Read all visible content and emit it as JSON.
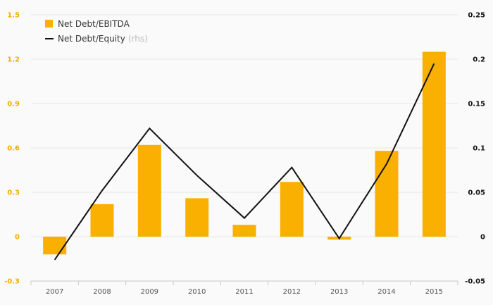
{
  "chart_data": {
    "type": "bar",
    "categories": [
      "2007",
      "2008",
      "2009",
      "2010",
      "2011",
      "2012",
      "2013",
      "2014",
      "2015"
    ],
    "series": [
      {
        "name": "Net Debt/EBITDA",
        "type": "bar",
        "axis": "left",
        "values": [
          -0.12,
          0.22,
          0.62,
          0.26,
          0.08,
          0.37,
          -0.02,
          0.58,
          1.25
        ]
      },
      {
        "name": "Net Debt/Equity",
        "name_suffix": "(rhs)",
        "type": "line",
        "axis": "right",
        "values": [
          -0.026,
          0.052,
          0.122,
          0.069,
          0.021,
          0.078,
          -0.002,
          0.082,
          0.195
        ]
      }
    ],
    "y_left": {
      "lim": [
        -0.3,
        1.5
      ],
      "ticks": [
        -0.3,
        0,
        0.3,
        0.6,
        0.9,
        1.2,
        1.5
      ],
      "tick_labels": [
        "-0.3",
        "0",
        "0.3",
        "0.6",
        "0.9",
        "1.2",
        "1.5"
      ]
    },
    "y_right": {
      "lim": [
        -0.05,
        0.25
      ],
      "ticks": [
        -0.05,
        0,
        0.05,
        0.1,
        0.15,
        0.2,
        0.25
      ],
      "tick_labels": [
        "-0.05",
        "0",
        "0.05",
        "0.1",
        "0.15",
        "0.2",
        "0.25"
      ]
    },
    "title": "",
    "xlabel": "",
    "ylabel": "",
    "grid": true,
    "legend_position": "top-left",
    "colors": {
      "bar": "#f9b000",
      "line": "#111111",
      "left_ticks": "#f2ae00",
      "right_ticks": "#111111",
      "grid": "#e6e6e6",
      "background": "#fafafa"
    }
  }
}
